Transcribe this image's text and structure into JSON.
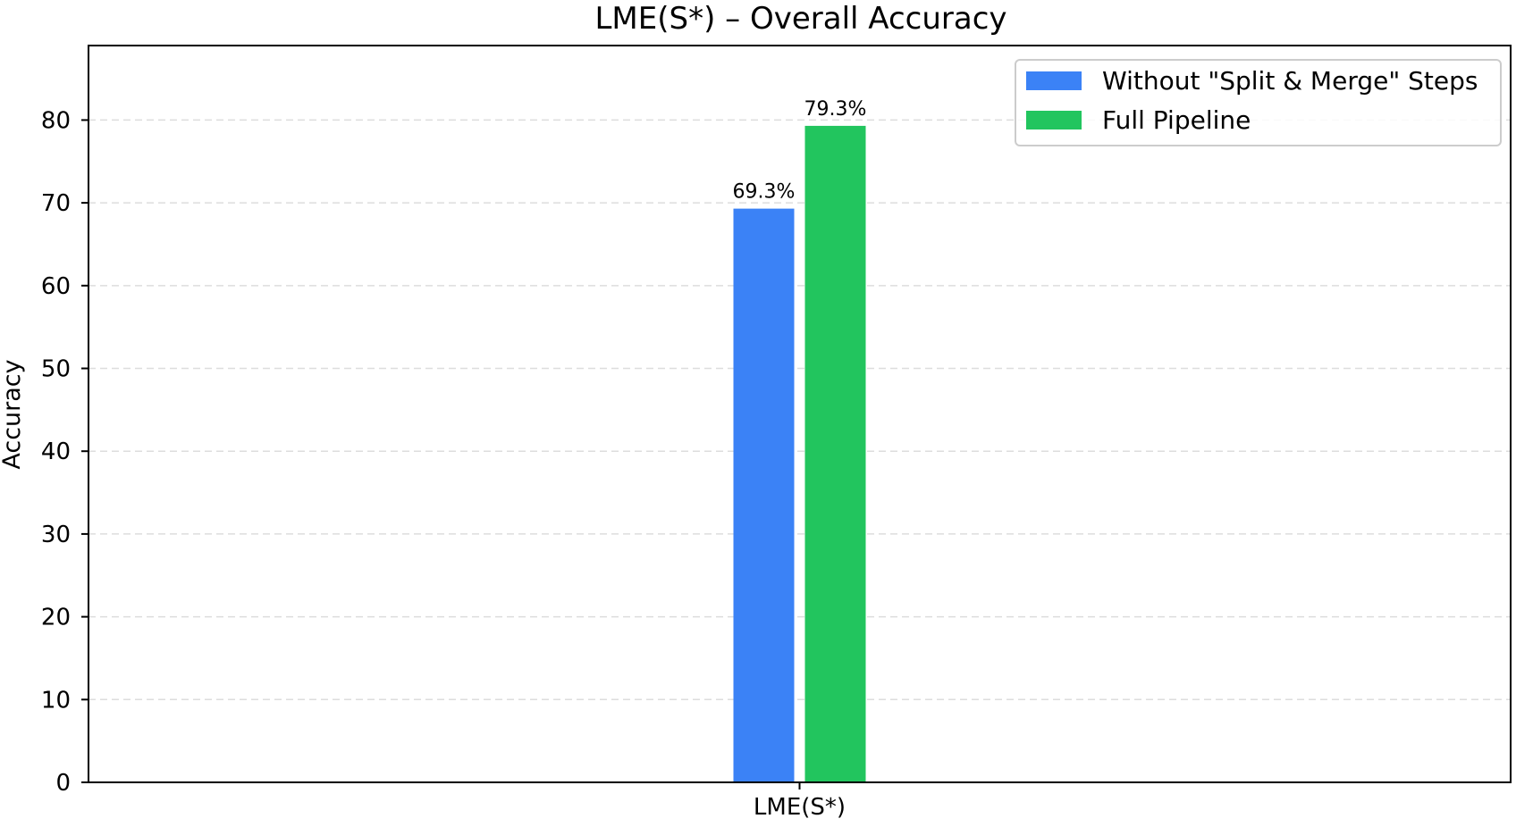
{
  "chart_data": {
    "type": "bar",
    "title": "LME(S*) – Overall Accuracy",
    "xlabel": "",
    "ylabel": "Accuracy",
    "categories": [
      "LME(S*)"
    ],
    "ylim": [
      0,
      89
    ],
    "yticks": [
      0,
      10,
      20,
      30,
      40,
      50,
      60,
      70,
      80
    ],
    "grid": true,
    "legend_position": "top-right",
    "series": [
      {
        "name": "Without \"Split & Merge\" Steps",
        "values": [
          69.3
        ],
        "color": "#3b82f6",
        "data_labels": [
          "69.3%"
        ]
      },
      {
        "name": "Full Pipeline",
        "values": [
          79.3
        ],
        "color": "#22c55e",
        "data_labels": [
          "79.3%"
        ]
      }
    ]
  }
}
